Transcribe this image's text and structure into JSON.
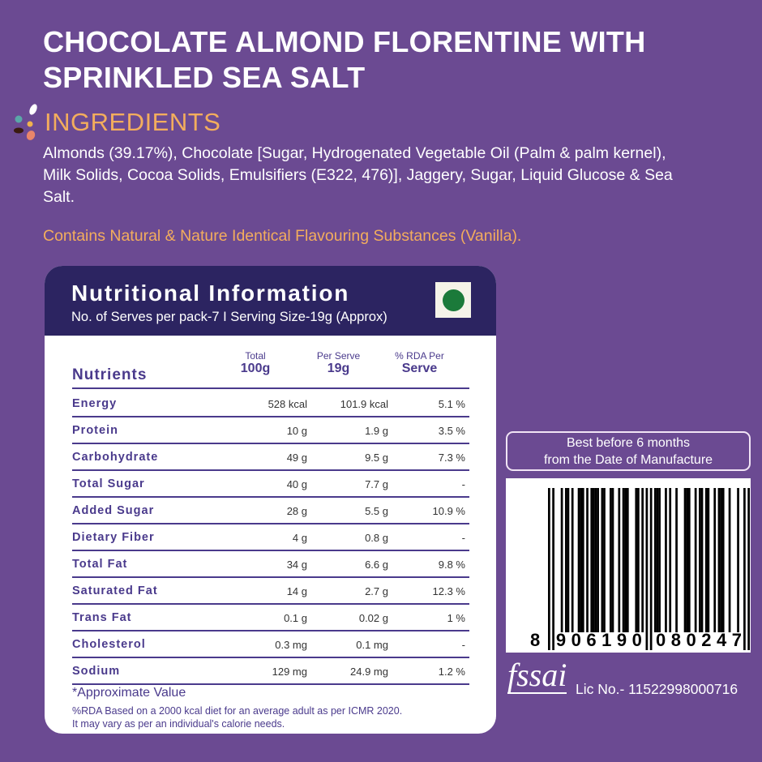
{
  "title": [
    "CHOCOLATE ALMOND FLORENTINE WITH",
    "SPRINKLED SEA SALT"
  ],
  "ingredients": {
    "heading": "INGREDIENTS",
    "text": "Almonds (39.17%), Chocolate [Sugar, Hydrogenated Vegetable Oil (Palm & palm kernel), Milk Solids, Cocoa Solids, Emulsifiers (E322, 476)], Jaggery, Sugar, Liquid Glucose & Sea Salt.",
    "flavouring": "Contains Natural & Nature Identical Flavouring Substances (Vanilla)."
  },
  "nutrition": {
    "title": "Nutritional Information",
    "subtitle": "No. of Serves per pack-7 I Serving Size-19g (Approx)",
    "columns": {
      "nutrients": "Nutrients",
      "total_top": "Total",
      "total_bottom": "100g",
      "serve_top": "Per Serve",
      "serve_bottom": "19g",
      "rda_top": "% RDA Per",
      "rda_bottom": "Serve"
    },
    "rows": [
      {
        "name": "Energy",
        "total": "528 kcal",
        "serve": "101.9 kcal",
        "rda": "5.1 %"
      },
      {
        "name": "Protein",
        "total": "10 g",
        "serve": "1.9 g",
        "rda": "3.5 %"
      },
      {
        "name": "Carbohydrate",
        "total": "49 g",
        "serve": "9.5 g",
        "rda": "7.3 %"
      },
      {
        "name": "Total Sugar",
        "total": "40 g",
        "serve": "7.7 g",
        "rda": "-"
      },
      {
        "name": "Added Sugar",
        "total": "28 g",
        "serve": "5.5 g",
        "rda": "10.9 %"
      },
      {
        "name": "Dietary Fiber",
        "total": "4 g",
        "serve": "0.8 g",
        "rda": "-"
      },
      {
        "name": "Total Fat",
        "total": "34 g",
        "serve": "6.6 g",
        "rda": "9.8 %"
      },
      {
        "name": "Saturated Fat",
        "total": "14 g",
        "serve": "2.7 g",
        "rda": "12.3 %"
      },
      {
        "name": "Trans Fat",
        "total": "0.1 g",
        "serve": "0.02 g",
        "rda": "1 %"
      },
      {
        "name": "Cholesterol",
        "total": "0.3 mg",
        "serve": "0.1 mg",
        "rda": "-"
      },
      {
        "name": "Sodium",
        "total": "129 mg",
        "serve": "24.9 mg",
        "rda": "1.2 %"
      }
    ],
    "footnote_title": "*Approximate Value",
    "footnote_lines": [
      "%RDA Based on a 2000 kcal diet for an average adult as per ICMR 2020.",
      "It may vary as per an individual's calorie needs."
    ]
  },
  "best_before": [
    "Best before 6 months",
    "from the Date of Manufacture"
  ],
  "barcode": {
    "first": "8",
    "left": "906190",
    "right": "080247"
  },
  "fssai": {
    "logo": "fssai",
    "license": "Lic No.- 11522998000716"
  },
  "colors": {
    "background": "#6b4a92",
    "header": "#2c2461",
    "accent": "#f3ad5d",
    "veg_mark": "#1b7a3a"
  }
}
